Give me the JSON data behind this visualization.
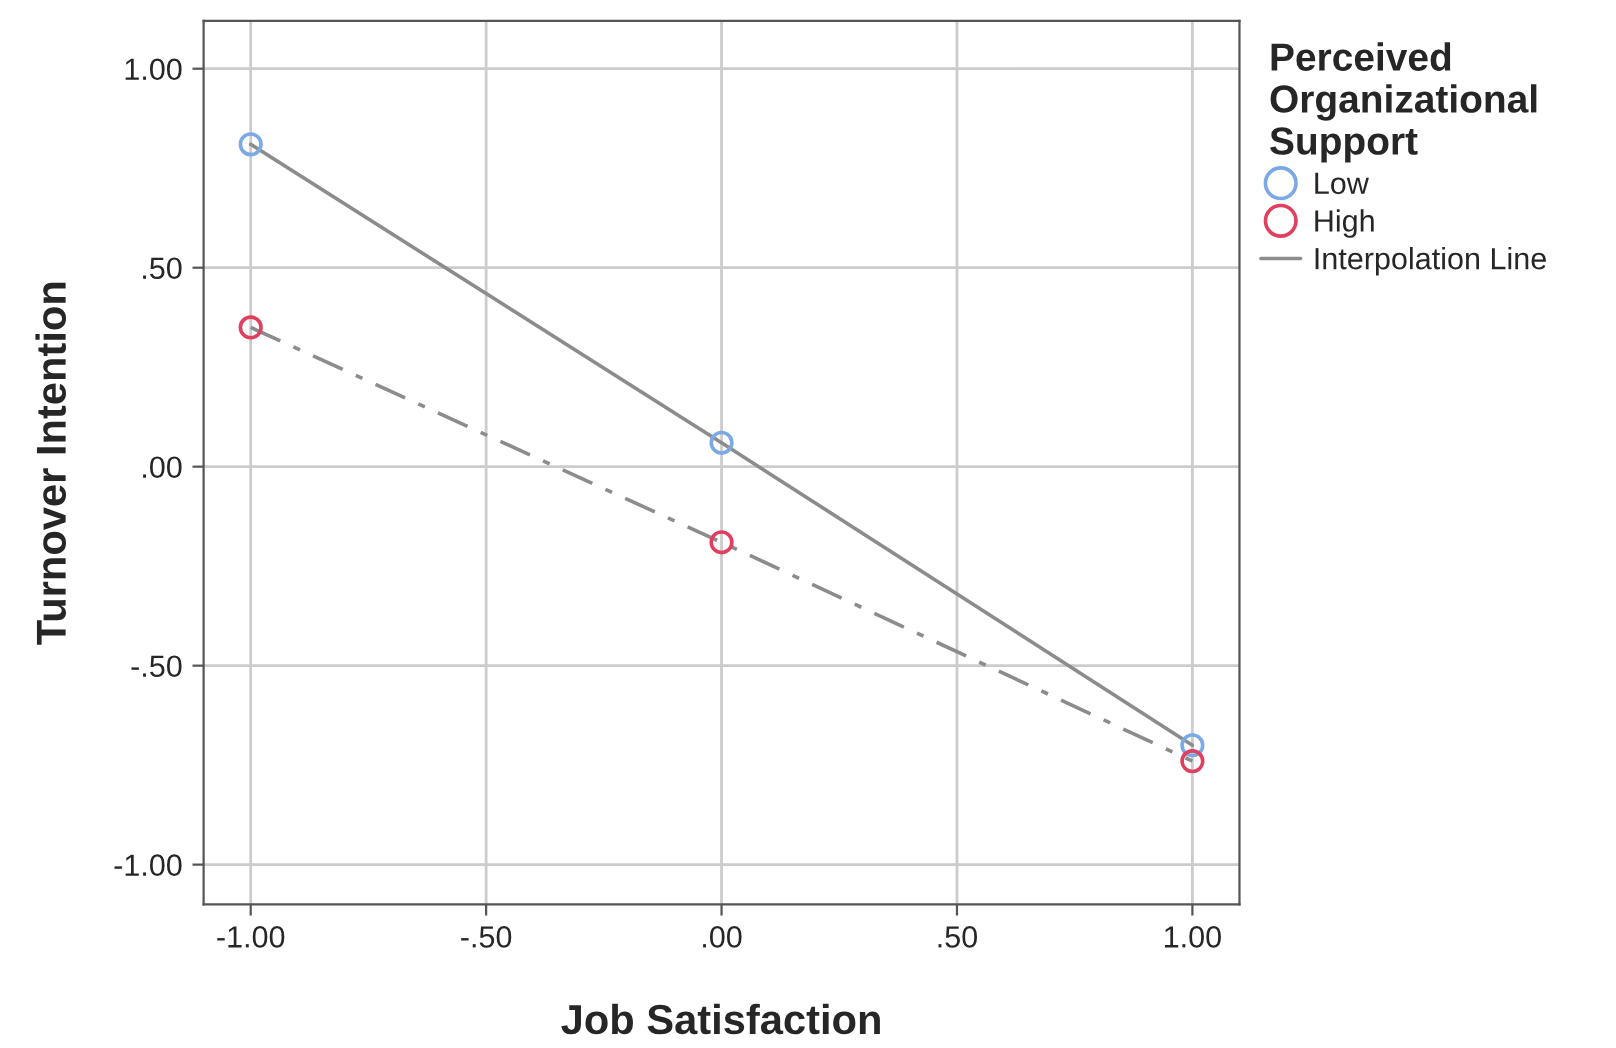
{
  "chart_data": {
    "type": "scatter",
    "xlabel": "Job Satisfaction",
    "ylabel": "Turnover Intention",
    "legend_title": "Perceived Organizational Support",
    "x": [
      -1,
      0,
      1
    ],
    "series": [
      {
        "name": "Low",
        "color": "#7aa9e6",
        "values": [
          0.81,
          0.06,
          -0.7
        ]
      },
      {
        "name": "High",
        "color": "#e0405f",
        "values": [
          0.35,
          -0.19,
          -0.74
        ]
      },
      {
        "name": "Interpolation Line",
        "type": "line",
        "color": "#8c8c8c",
        "line_style": "solid",
        "marker": "none",
        "values": [
          0.81,
          0.06,
          -0.7
        ]
      },
      {
        "type": "line",
        "color": "#8c8c8c",
        "line_style": "dashed",
        "marker": "none",
        "values": [
          0.35,
          -0.19,
          -0.74
        ]
      }
    ],
    "marker": "circle",
    "xlim": [
      -1.1,
      1.1
    ],
    "xticks": [
      {
        "value": -1,
        "label": "-1.00"
      },
      {
        "value": -0.5,
        "label": "-.50"
      },
      {
        "value": 0,
        "label": ".00"
      },
      {
        "value": 0.5,
        "label": ".50"
      },
      {
        "value": 1,
        "label": "1.00"
      }
    ],
    "ylim": [
      -1.1,
      1.12
    ],
    "yticks": [
      {
        "value": -1,
        "label": "-1.00"
      },
      {
        "value": -0.5,
        "label": "-.50"
      },
      {
        "value": 0,
        "label": ".00"
      },
      {
        "value": 0.5,
        "label": ".50"
      },
      {
        "value": 1,
        "label": "1.00"
      }
    ],
    "grid": true,
    "legend": "top right"
  }
}
